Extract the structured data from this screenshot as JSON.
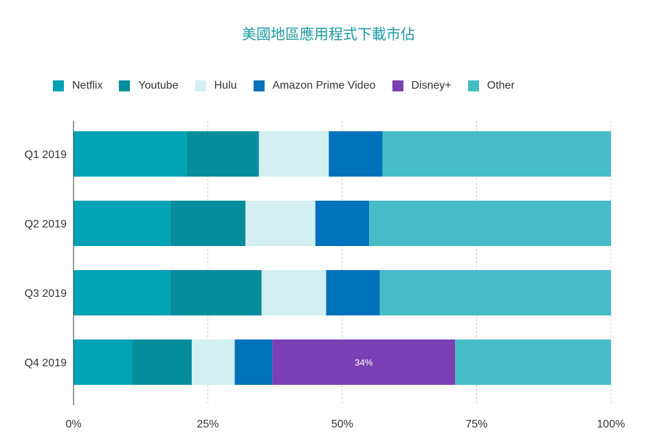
{
  "chart_data": {
    "type": "bar",
    "orientation": "horizontal",
    "stacked": "percent",
    "title": "美國地區應用程式下載市佔",
    "categories": [
      "Q1 2019",
      "Q2 2019",
      "Q3 2019",
      "Q4 2019"
    ],
    "series": [
      {
        "name": "Netflix",
        "color": "#00a2b5",
        "values": [
          21,
          18,
          18,
          11
        ]
      },
      {
        "name": "Youtube",
        "color": "#078e9c",
        "values": [
          13.5,
          14,
          17,
          11
        ]
      },
      {
        "name": "Hulu",
        "color": "#d3eff1",
        "values": [
          13,
          13,
          12,
          8
        ]
      },
      {
        "name": "Amazon Prime Video",
        "color": "#0071bb",
        "values": [
          10,
          10,
          10,
          7
        ]
      },
      {
        "name": "Disney+",
        "color": "#7b3fb4",
        "values": [
          0,
          0,
          0,
          34
        ]
      },
      {
        "name": "Other",
        "color": "#45bcc6",
        "values": [
          42.5,
          45,
          43,
          29
        ]
      }
    ],
    "data_labels": [
      {
        "series": "Disney+",
        "category": "Q4 2019",
        "text": "34%"
      }
    ],
    "xlim": [
      0,
      100
    ],
    "x_ticks": [
      "0%",
      "25%",
      "50%",
      "75%",
      "100%"
    ],
    "grid": "vertical dashed",
    "legend_position": "top"
  }
}
